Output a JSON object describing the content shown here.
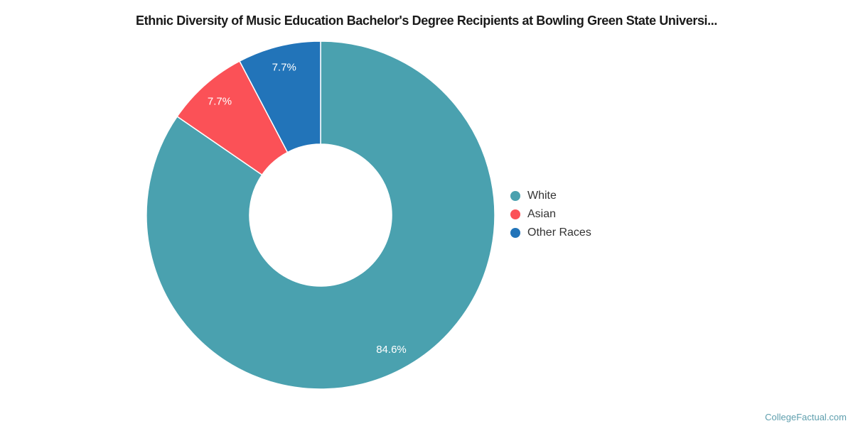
{
  "watermark": "CollegeFactual.com",
  "chart_data": {
    "type": "pie",
    "subtype": "donut",
    "title": "Ethnic Diversity of Music Education Bachelor's Degree Recipients at Bowling Green State Universi...",
    "categories": [
      "White",
      "Asian",
      "Other Races"
    ],
    "values": [
      84.6,
      7.7,
      7.7
    ],
    "slice_labels": [
      "84.6%",
      "7.7%",
      "7.7%"
    ],
    "colors": [
      "#4AA1AF",
      "#FB5157",
      "#2274B9"
    ],
    "units": "percent",
    "start_angle_deg": 0,
    "direction": "clockwise",
    "inner_radius_ratio": 0.41,
    "slice_label_color": "#FFFFFF",
    "slice_border_color": "#FFFFFF",
    "legend_position": "right",
    "legend_entries": [
      "White",
      "Asian",
      "Other Races"
    ],
    "grid": false
  },
  "colors": {
    "background": "#FFFFFF",
    "title_text": "#1A1A1A",
    "legend_text": "#333333",
    "watermark_text": "#5F9FAE"
  }
}
